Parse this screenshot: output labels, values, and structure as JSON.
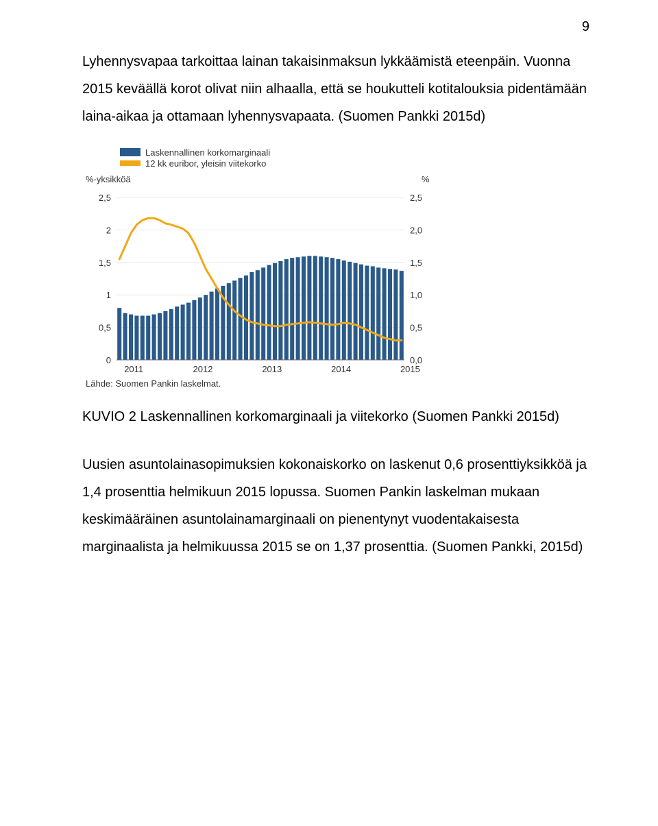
{
  "page_number": "9",
  "paragraph1": "Lyhennysvapaa tarkoittaa lainan takaisinmaksun lykkäämistä eteenpäin. Vuonna 2015 keväällä korot olivat niin alhaalla, että se houkutteli kotitalouksia pidentämään laina-aikaa ja ottamaan lyhennysvapaata. (Suomen Pankki 2015d)",
  "caption": "KUVIO 2 Laskennallinen korkomarginaali ja viitekorko (Suomen Pankki 2015d)",
  "paragraph2": "Uusien asuntolainasopimuksien kokonaiskorko on laskenut 0,6 prosenttiyksikköä ja 1,4 prosenttia helmikuun 2015 lopussa. Suomen Pankin laskelman mukaan keskimääräinen asuntolainamarginaali on pienentynyt vuodentakaisesta marginaalista ja helmikuussa 2015 se on 1,37 prosenttia. (Suomen Pankki, 2015d)",
  "chart": {
    "type": "bar+line",
    "legend": {
      "bar_label": "Laskennallinen korkomarginaali",
      "line_label": "12 kk euribor, yleisin viitekorko",
      "bar_color": "#2a5a8a",
      "line_color": "#f0a818"
    },
    "left_axis": {
      "title": "%-yksikköä",
      "min": 0,
      "max": 2.5,
      "ticks": [
        0,
        0.5,
        1,
        1.5,
        2,
        2.5
      ],
      "tick_labels": [
        "0",
        "0,5",
        "1",
        "1,5",
        "2",
        "2,5"
      ]
    },
    "right_axis": {
      "title": "%",
      "min": 0,
      "max": 2.5,
      "ticks": [
        0,
        0.5,
        1,
        1.5,
        2,
        2.5
      ],
      "tick_labels": [
        "0,0",
        "0,5",
        "1,0",
        "1,5",
        "2,0",
        "2,5"
      ]
    },
    "x_axis": {
      "year_labels": [
        "2011",
        "2012",
        "2013",
        "2014",
        "2015"
      ],
      "year_positions": [
        0,
        12,
        24,
        36,
        48
      ]
    },
    "bar_series": {
      "color": "#2a5a8a",
      "bar_width": 0.72,
      "values": [
        0.8,
        0.72,
        0.7,
        0.68,
        0.68,
        0.68,
        0.7,
        0.72,
        0.75,
        0.78,
        0.82,
        0.85,
        0.88,
        0.92,
        0.96,
        1.0,
        1.05,
        1.1,
        1.14,
        1.18,
        1.22,
        1.26,
        1.3,
        1.35,
        1.38,
        1.42,
        1.46,
        1.49,
        1.52,
        1.55,
        1.57,
        1.58,
        1.59,
        1.6,
        1.6,
        1.59,
        1.58,
        1.57,
        1.55,
        1.53,
        1.51,
        1.49,
        1.47,
        1.45,
        1.44,
        1.42,
        1.41,
        1.4,
        1.39,
        1.37
      ]
    },
    "line_series": {
      "color": "#f0a818",
      "line_width": 3,
      "values": [
        1.55,
        1.75,
        1.95,
        2.08,
        2.15,
        2.18,
        2.18,
        2.15,
        2.1,
        2.08,
        2.05,
        2.02,
        1.95,
        1.8,
        1.6,
        1.4,
        1.25,
        1.1,
        0.96,
        0.85,
        0.75,
        0.68,
        0.62,
        0.58,
        0.56,
        0.54,
        0.53,
        0.52,
        0.52,
        0.54,
        0.55,
        0.56,
        0.57,
        0.58,
        0.57,
        0.56,
        0.55,
        0.54,
        0.55,
        0.57,
        0.56,
        0.54,
        0.5,
        0.46,
        0.42,
        0.38,
        0.34,
        0.32,
        0.3,
        0.3
      ]
    },
    "source_label": "Lähde: Suomen Pankin laskelmat.",
    "background_color": "#ffffff",
    "grid_color": "#e8e8e8",
    "text_color": "#333333",
    "label_fontsize": 13
  }
}
